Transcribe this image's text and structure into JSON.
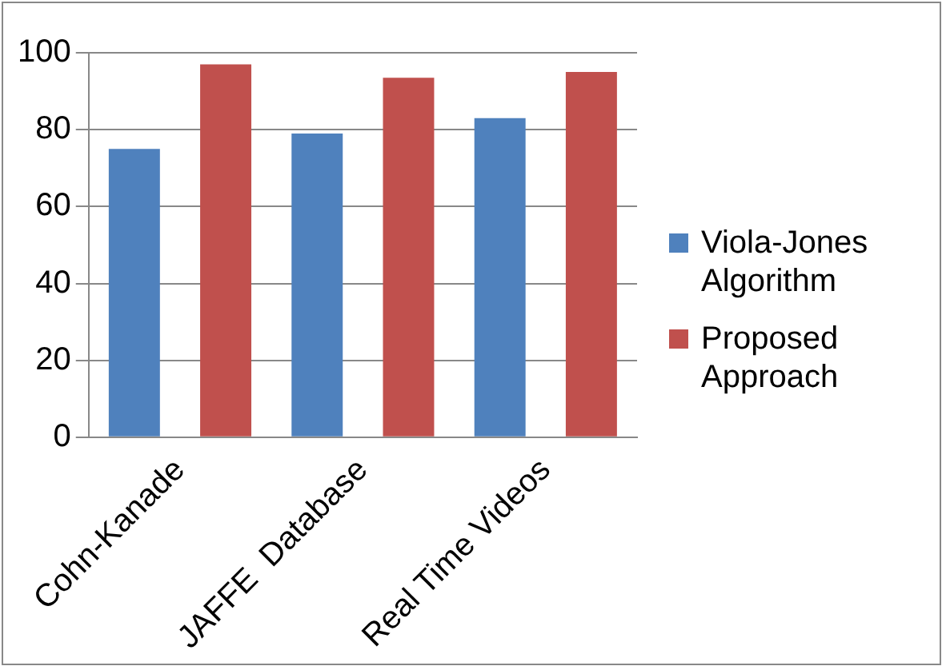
{
  "chart_data": {
    "type": "bar",
    "categories": [
      "Cohn-Kanade",
      "JAFFE  Database",
      "Real Time Videos"
    ],
    "series": [
      {
        "name": "Viola-Jones Algorithm",
        "color": "#4f81bd",
        "values": [
          75,
          79,
          83
        ]
      },
      {
        "name": "Proposed Approach",
        "color": "#c0504d",
        "values": [
          97,
          93.5,
          95
        ]
      }
    ],
    "ylim": [
      0,
      100
    ],
    "yticks": [
      0,
      20,
      40,
      60,
      80,
      100
    ],
    "grid": "y",
    "legend": "right"
  }
}
